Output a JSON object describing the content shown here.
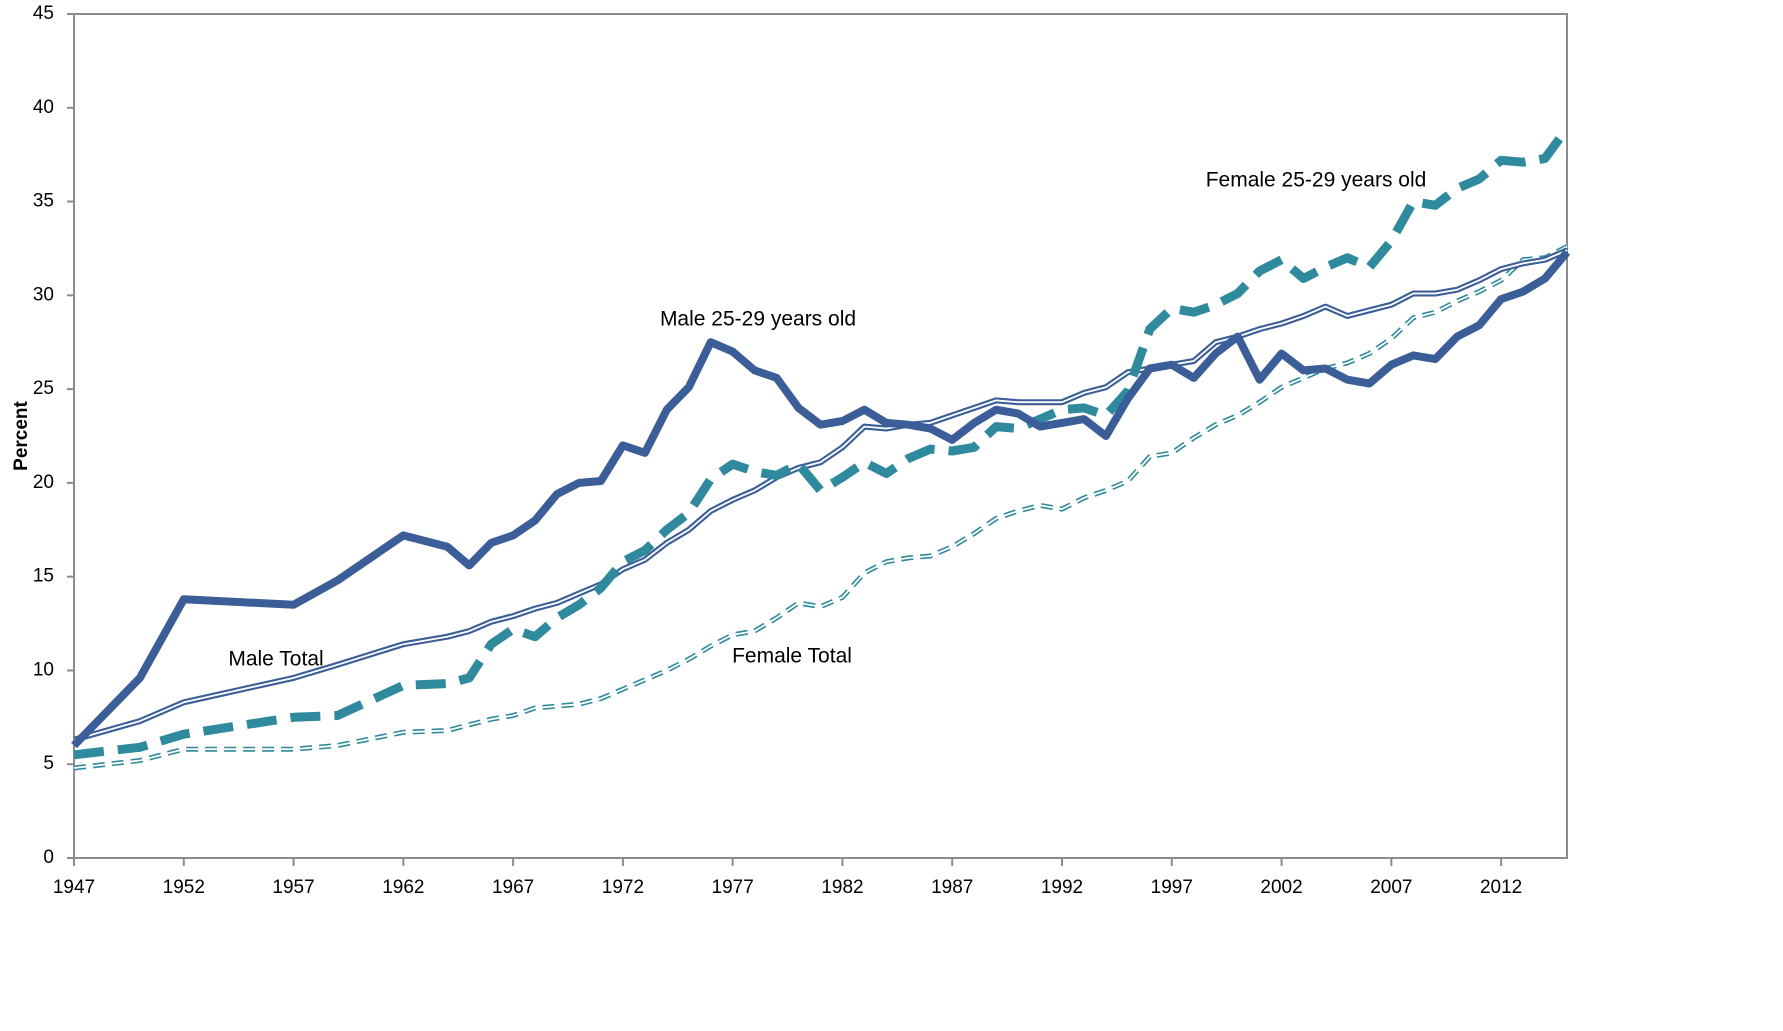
{
  "chart_data": {
    "type": "line",
    "y_label": "Percent",
    "x": [
      1947,
      1950,
      1952,
      1957,
      1959,
      1962,
      1964,
      1965,
      1966,
      1967,
      1968,
      1969,
      1970,
      1971,
      1972,
      1973,
      1974,
      1975,
      1976,
      1977,
      1978,
      1979,
      1980,
      1981,
      1982,
      1983,
      1984,
      1985,
      1986,
      1987,
      1988,
      1989,
      1990,
      1991,
      1992,
      1993,
      1994,
      1995,
      1996,
      1997,
      1998,
      1999,
      2000,
      2001,
      2002,
      2003,
      2004,
      2005,
      2006,
      2007,
      2008,
      2009,
      2010,
      2011,
      2012,
      2013,
      2014,
      2015
    ],
    "xlim": [
      1947,
      2015
    ],
    "xticks": [
      1947,
      1952,
      1957,
      1962,
      1967,
      1972,
      1977,
      1982,
      1987,
      1992,
      1997,
      2002,
      2007,
      2012
    ],
    "ylim": [
      0,
      45
    ],
    "yticks": [
      0,
      5,
      10,
      15,
      20,
      25,
      30,
      35,
      40,
      45
    ],
    "series": [
      {
        "name": "Male 25-29 years old",
        "color": "#3b5e98",
        "dashed": false,
        "double": false,
        "values": [
          6.0,
          9.6,
          13.8,
          13.5,
          14.8,
          17.2,
          16.6,
          15.6,
          16.8,
          17.2,
          18.0,
          19.4,
          20.0,
          20.1,
          22.0,
          21.6,
          23.9,
          25.1,
          27.5,
          27.0,
          26.0,
          25.6,
          24.0,
          23.1,
          23.3,
          23.9,
          23.2,
          23.1,
          22.9,
          22.3,
          23.2,
          23.9,
          23.7,
          23.0,
          23.2,
          23.4,
          22.5,
          24.5,
          26.1,
          26.3,
          25.6,
          26.9,
          27.8,
          25.5,
          26.9,
          26.0,
          26.1,
          25.5,
          25.3,
          26.3,
          26.8,
          26.6,
          27.8,
          28.4,
          29.8,
          30.2,
          30.9,
          32.3
        ]
      },
      {
        "name": "Female 25-29 years old",
        "color": "#2f8a9d",
        "dashed": true,
        "double": false,
        "values": [
          5.5,
          5.9,
          6.6,
          7.5,
          7.6,
          9.2,
          9.3,
          9.6,
          11.4,
          12.2,
          11.8,
          12.8,
          13.5,
          14.4,
          15.8,
          16.4,
          17.5,
          18.4,
          20.2,
          21.0,
          20.6,
          20.4,
          21.0,
          19.6,
          20.3,
          21.1,
          20.5,
          21.3,
          21.8,
          21.7,
          21.9,
          23.0,
          22.9,
          23.4,
          23.9,
          24.0,
          23.6,
          24.9,
          28.2,
          29.3,
          29.1,
          29.5,
          30.1,
          31.3,
          31.9,
          30.9,
          31.5,
          32.0,
          31.5,
          32.9,
          35.0,
          34.8,
          35.7,
          36.2,
          37.2,
          37.1,
          37.3,
          38.9
        ]
      },
      {
        "name": "Male Total",
        "color": "#3b5e98",
        "dashed": false,
        "double": true,
        "values": [
          6.3,
          7.3,
          8.3,
          9.6,
          10.3,
          11.4,
          11.8,
          12.1,
          12.6,
          12.9,
          13.3,
          13.6,
          14.1,
          14.6,
          15.4,
          15.9,
          16.8,
          17.5,
          18.5,
          19.1,
          19.6,
          20.3,
          20.8,
          21.1,
          21.9,
          23.0,
          22.9,
          23.1,
          23.2,
          23.6,
          24.0,
          24.4,
          24.3,
          24.3,
          24.3,
          24.8,
          25.1,
          25.9,
          26.1,
          26.3,
          26.5,
          27.5,
          27.8,
          28.2,
          28.5,
          28.9,
          29.4,
          28.9,
          29.2,
          29.5,
          30.1,
          30.1,
          30.3,
          30.8,
          31.4,
          31.7,
          31.9,
          32.4
        ]
      },
      {
        "name": "Female Total",
        "color": "#2f8a9d",
        "dashed": true,
        "double": true,
        "values": [
          4.8,
          5.2,
          5.8,
          5.8,
          6.0,
          6.7,
          6.8,
          7.1,
          7.4,
          7.6,
          8.0,
          8.1,
          8.2,
          8.5,
          9.0,
          9.5,
          10.0,
          10.6,
          11.3,
          11.9,
          12.1,
          12.8,
          13.6,
          13.4,
          13.9,
          15.2,
          15.8,
          16.0,
          16.1,
          16.6,
          17.3,
          18.1,
          18.5,
          18.8,
          18.6,
          19.2,
          19.6,
          20.1,
          21.4,
          21.6,
          22.4,
          23.1,
          23.6,
          24.3,
          25.1,
          25.6,
          26.1,
          26.4,
          26.9,
          27.7,
          28.8,
          29.1,
          29.7,
          30.2,
          30.8,
          31.9,
          32.0,
          32.6
        ]
      }
    ]
  }
}
